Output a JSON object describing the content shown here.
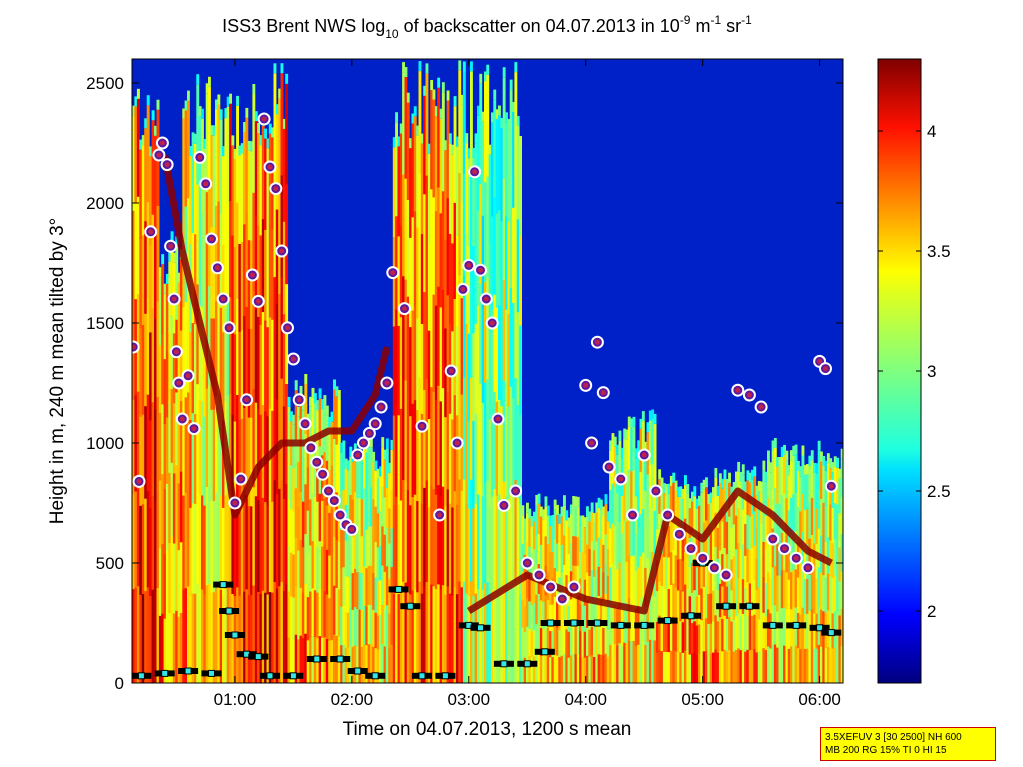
{
  "chart_data": {
    "type": "heatmap",
    "title_main": "ISS3 Brent NWS log",
    "title_sub": "10",
    "title_mid": " of backscatter on 04.07.2013 in 10",
    "title_exp1": "-9",
    "title_m": " m",
    "title_exp2": "-1",
    "title_sr": " sr",
    "title_exp3": "-1",
    "xlabel": "Time on 04.07.2013, 1200 s mean",
    "ylabel": "Height in m, 240 m mean tilted by 3°",
    "xlim": [
      0.12,
      6.2
    ],
    "ylim": [
      0,
      2600
    ],
    "x_ticks": [
      {
        "value": 1.0,
        "label": "01:00"
      },
      {
        "value": 2.0,
        "label": "02:00"
      },
      {
        "value": 3.0,
        "label": "03:00"
      },
      {
        "value": 4.0,
        "label": "04:00"
      },
      {
        "value": 5.0,
        "label": "05:00"
      },
      {
        "value": 6.0,
        "label": "06:00"
      }
    ],
    "y_ticks": [
      {
        "value": 0,
        "label": "0"
      },
      {
        "value": 500,
        "label": "500"
      },
      {
        "value": 1000,
        "label": "1000"
      },
      {
        "value": 1500,
        "label": "1500"
      },
      {
        "value": 2000,
        "label": "2000"
      },
      {
        "value": 2500,
        "label": "2500"
      }
    ],
    "colorbar": {
      "colormap": "jet",
      "clim": [
        1.7,
        4.3
      ],
      "ticks": [
        {
          "value": 2,
          "label": "2"
        },
        {
          "value": 2.5,
          "label": "2.5"
        },
        {
          "value": 3,
          "label": "3"
        },
        {
          "value": 3.5,
          "label": "3.5"
        },
        {
          "value": 4,
          "label": "4"
        }
      ]
    },
    "columns": [
      {
        "x0": 0.12,
        "x1": 0.35,
        "top": 2560,
        "vbase": 3.9
      },
      {
        "x0": 0.35,
        "x1": 0.55,
        "top": 1900,
        "vbase": 3.7
      },
      {
        "x0": 0.55,
        "x1": 0.95,
        "top": 2560,
        "vbase": 3.5
      },
      {
        "x0": 0.95,
        "x1": 1.45,
        "top": 2560,
        "vbase": 3.9
      },
      {
        "x0": 1.45,
        "x1": 1.9,
        "top": 1250,
        "vbase": 3.6
      },
      {
        "x0": 1.9,
        "x1": 2.35,
        "top": 1000,
        "vbase": 3.4
      },
      {
        "x0": 2.35,
        "x1": 2.95,
        "top": 2560,
        "vbase": 3.8
      },
      {
        "x0": 2.95,
        "x1": 3.45,
        "top": 2560,
        "vbase": 3.2
      },
      {
        "x0": 3.45,
        "x1": 4.2,
        "top": 750,
        "vbase": 3.5
      },
      {
        "x0": 4.2,
        "x1": 4.6,
        "top": 1100,
        "vbase": 3.4
      },
      {
        "x0": 4.6,
        "x1": 5.1,
        "top": 850,
        "vbase": 3.6
      },
      {
        "x0": 5.1,
        "x1": 5.55,
        "top": 900,
        "vbase": 3.5
      },
      {
        "x0": 5.55,
        "x1": 6.2,
        "top": 1000,
        "vbase": 3.4
      }
    ],
    "layers": [
      {
        "name": "top layer",
        "points": [
          [
            0.4,
            2200
          ],
          [
            0.55,
            1800
          ],
          [
            0.7,
            1500
          ],
          [
            0.85,
            1200
          ],
          [
            1.0,
            700
          ],
          [
            1.2,
            900
          ],
          [
            1.4,
            1000
          ],
          [
            1.6,
            1000
          ],
          [
            1.8,
            1050
          ],
          [
            2.0,
            1050
          ],
          [
            2.2,
            1200
          ],
          [
            2.3,
            1400
          ]
        ],
        "color": "#8b0000"
      },
      {
        "name": "aerosol layer",
        "points": [
          [
            3.0,
            300
          ],
          [
            3.5,
            450
          ],
          [
            4.0,
            350
          ],
          [
            4.5,
            300
          ],
          [
            4.7,
            700
          ],
          [
            5.0,
            600
          ],
          [
            5.3,
            800
          ],
          [
            5.6,
            700
          ],
          [
            5.9,
            550
          ],
          [
            6.1,
            500
          ]
        ],
        "color": "#8b0000"
      }
    ],
    "cloud_base_points": [
      [
        0.13,
        1400
      ],
      [
        0.18,
        840
      ],
      [
        0.28,
        1880
      ],
      [
        0.35,
        2200
      ],
      [
        0.38,
        2250
      ],
      [
        0.42,
        2160
      ],
      [
        0.45,
        1820
      ],
      [
        0.48,
        1600
      ],
      [
        0.5,
        1380
      ],
      [
        0.52,
        1250
      ],
      [
        0.55,
        1100
      ],
      [
        0.6,
        1280
      ],
      [
        0.65,
        1060
      ],
      [
        0.7,
        2190
      ],
      [
        0.75,
        2080
      ],
      [
        0.8,
        1850
      ],
      [
        0.85,
        1730
      ],
      [
        0.9,
        1600
      ],
      [
        0.95,
        1480
      ],
      [
        1.0,
        750
      ],
      [
        1.05,
        850
      ],
      [
        1.1,
        1180
      ],
      [
        1.15,
        1700
      ],
      [
        1.2,
        1590
      ],
      [
        1.25,
        2350
      ],
      [
        1.3,
        2150
      ],
      [
        1.35,
        2060
      ],
      [
        1.4,
        1800
      ],
      [
        1.45,
        1480
      ],
      [
        1.5,
        1350
      ],
      [
        1.55,
        1180
      ],
      [
        1.6,
        1080
      ],
      [
        1.65,
        980
      ],
      [
        1.7,
        920
      ],
      [
        1.75,
        870
      ],
      [
        1.8,
        800
      ],
      [
        1.85,
        760
      ],
      [
        1.9,
        700
      ],
      [
        1.95,
        660
      ],
      [
        2.0,
        640
      ],
      [
        2.05,
        950
      ],
      [
        2.1,
        1000
      ],
      [
        2.15,
        1040
      ],
      [
        2.2,
        1080
      ],
      [
        2.25,
        1150
      ],
      [
        2.3,
        1250
      ],
      [
        2.35,
        1710
      ],
      [
        2.45,
        1560
      ],
      [
        2.6,
        1070
      ],
      [
        2.75,
        700
      ],
      [
        2.85,
        1300
      ],
      [
        2.9,
        1000
      ],
      [
        2.95,
        1640
      ],
      [
        3.0,
        1740
      ],
      [
        3.05,
        2130
      ],
      [
        3.1,
        1720
      ],
      [
        3.15,
        1600
      ],
      [
        3.2,
        1500
      ],
      [
        3.25,
        1100
      ],
      [
        3.3,
        740
      ],
      [
        3.4,
        800
      ],
      [
        3.5,
        500
      ],
      [
        3.6,
        450
      ],
      [
        3.7,
        400
      ],
      [
        3.8,
        350
      ],
      [
        3.9,
        400
      ],
      [
        4.0,
        1240
      ],
      [
        4.05,
        1000
      ],
      [
        4.1,
        1420
      ],
      [
        4.15,
        1210
      ],
      [
        4.2,
        900
      ],
      [
        4.3,
        850
      ],
      [
        4.4,
        700
      ],
      [
        4.5,
        950
      ],
      [
        4.6,
        800
      ],
      [
        4.7,
        700
      ],
      [
        4.8,
        620
      ],
      [
        4.9,
        560
      ],
      [
        5.0,
        520
      ],
      [
        5.1,
        480
      ],
      [
        5.2,
        450
      ],
      [
        5.3,
        1220
      ],
      [
        5.4,
        1200
      ],
      [
        5.5,
        1150
      ],
      [
        5.6,
        600
      ],
      [
        5.7,
        560
      ],
      [
        5.8,
        520
      ],
      [
        5.9,
        480
      ],
      [
        6.0,
        1340
      ],
      [
        6.05,
        1310
      ],
      [
        6.1,
        820
      ]
    ],
    "ground_points": [
      [
        0.2,
        30
      ],
      [
        0.4,
        40
      ],
      [
        0.6,
        50
      ],
      [
        0.8,
        40
      ],
      [
        0.9,
        410
      ],
      [
        0.95,
        300
      ],
      [
        1.0,
        200
      ],
      [
        1.1,
        120
      ],
      [
        1.2,
        110
      ],
      [
        1.3,
        30
      ],
      [
        1.5,
        30
      ],
      [
        1.7,
        100
      ],
      [
        1.9,
        100
      ],
      [
        2.05,
        50
      ],
      [
        2.2,
        30
      ],
      [
        2.4,
        390
      ],
      [
        2.5,
        320
      ],
      [
        2.6,
        30
      ],
      [
        2.8,
        30
      ],
      [
        3.0,
        240
      ],
      [
        3.1,
        230
      ],
      [
        3.3,
        80
      ],
      [
        3.5,
        80
      ],
      [
        3.65,
        130
      ],
      [
        3.7,
        250
      ],
      [
        3.9,
        250
      ],
      [
        4.1,
        250
      ],
      [
        4.3,
        240
      ],
      [
        4.5,
        240
      ],
      [
        4.7,
        260
      ],
      [
        4.9,
        280
      ],
      [
        5.0,
        500
      ],
      [
        5.2,
        320
      ],
      [
        5.4,
        320
      ],
      [
        5.6,
        240
      ],
      [
        5.8,
        240
      ],
      [
        6.0,
        230
      ],
      [
        6.1,
        210
      ]
    ]
  },
  "info_box": {
    "line1": "3.5XEFUV 3 [30 2500] NH 600",
    "line2": "MB 200 RG 15% TI 0 HI 15"
  }
}
